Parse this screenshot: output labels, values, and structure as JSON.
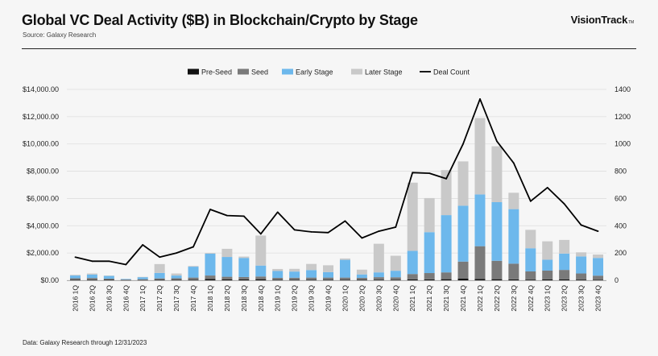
{
  "header": {
    "title": "Global VC Deal Activity ($B) in Blockchain/Crypto by Stage",
    "source": "Source: Galaxy Research",
    "brand": "VisionTrack",
    "brand_mark": "TM"
  },
  "footer": {
    "note": "Data: Galaxy Research through 12/31/2023"
  },
  "chart_data": {
    "type": "bar",
    "stacked": true,
    "title": "Global VC Deal Activity ($B) in Blockchain/Crypto by Stage",
    "xlabel": "",
    "ylabel": "",
    "ylim": [
      0,
      14000
    ],
    "y2lim": [
      0,
      1400
    ],
    "y_ticks": [
      "$0.00",
      "$2,000.00",
      "$4,000.00",
      "$6,000.00",
      "$8,000.00",
      "$10,000.00",
      "$12,000.00",
      "$14,000.00"
    ],
    "y2_ticks": [
      "0",
      "200",
      "400",
      "600",
      "800",
      "1000",
      "1200",
      "1400"
    ],
    "legend_position": "top-center",
    "categories": [
      "2016 1Q",
      "2016 2Q",
      "2016 3Q",
      "2016 4Q",
      "2017 1Q",
      "2017 2Q",
      "2017 3Q",
      "2017 4Q",
      "2018 1Q",
      "2018 2Q",
      "2018 3Q",
      "2018 4Q",
      "2019 1Q",
      "2019 2Q",
      "2019 3Q",
      "2019 4Q",
      "2020 1Q",
      "2020 2Q",
      "2020 3Q",
      "2020 4Q",
      "2021 1Q",
      "2021 2Q",
      "2021 3Q",
      "2021 4Q",
      "2022 1Q",
      "2022 2Q",
      "2022 3Q",
      "2022 4Q",
      "2023 1Q",
      "2023 2Q",
      "2023 3Q",
      "2023 4Q"
    ],
    "series": [
      {
        "name": "Pre-Seed",
        "color": "#111111",
        "values": [
          40,
          40,
          30,
          15,
          20,
          30,
          40,
          40,
          100,
          60,
          60,
          80,
          40,
          40,
          40,
          40,
          40,
          30,
          30,
          40,
          60,
          70,
          80,
          120,
          100,
          80,
          70,
          50,
          60,
          60,
          50,
          40
        ]
      },
      {
        "name": "Seed",
        "color": "#7a7a7a",
        "values": [
          110,
          130,
          90,
          40,
          60,
          110,
          110,
          160,
          250,
          200,
          180,
          200,
          140,
          150,
          160,
          160,
          160,
          150,
          200,
          180,
          400,
          460,
          500,
          1250,
          2400,
          1350,
          1150,
          600,
          650,
          700,
          450,
          300
        ]
      },
      {
        "name": "Early Stage",
        "color": "#6db8ec",
        "values": [
          200,
          250,
          200,
          40,
          150,
          400,
          200,
          800,
          1600,
          1450,
          1400,
          800,
          500,
          450,
          550,
          400,
          1300,
          250,
          350,
          480,
          1700,
          3000,
          4200,
          4100,
          3800,
          4300,
          4000,
          1700,
          800,
          1200,
          1250,
          1300
        ]
      },
      {
        "name": "Later Stage",
        "color": "#c9c9c9",
        "values": [
          50,
          80,
          30,
          0,
          20,
          650,
          150,
          50,
          50,
          600,
          100,
          2200,
          150,
          200,
          450,
          500,
          100,
          350,
          2100,
          1100,
          5000,
          2500,
          3300,
          3250,
          5600,
          4100,
          1200,
          1350,
          1350,
          1000,
          300,
          250
        ]
      },
      {
        "name": "Deal Count",
        "color": "#000000",
        "axis": "right",
        "kind": "line",
        "values": [
          170,
          140,
          140,
          115,
          260,
          170,
          200,
          245,
          520,
          475,
          470,
          340,
          500,
          370,
          355,
          350,
          435,
          310,
          360,
          390,
          790,
          785,
          745,
          1000,
          1330,
          1020,
          860,
          580,
          680,
          560,
          405,
          360
        ]
      }
    ]
  }
}
